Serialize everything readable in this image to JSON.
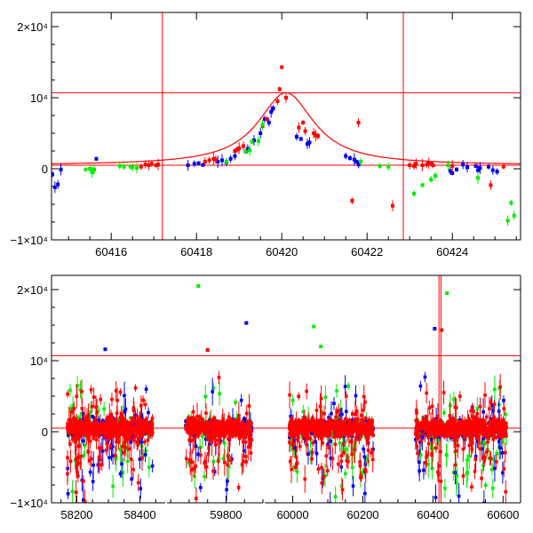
{
  "colors": {
    "red": "#ff0000",
    "green": "#00ee00",
    "blue": "#0000ee",
    "frame": "#000000",
    "background": "#ffffff"
  },
  "chart_data": [
    {
      "type": "scatter",
      "panel": "top",
      "title": "",
      "xlabel": "",
      "ylabel": "",
      "xlim": [
        60414.6,
        60425.6
      ],
      "ylim": [
        -10000,
        22000
      ],
      "x_ticks": [
        60416,
        60418,
        60420,
        60422,
        60424
      ],
      "x_tick_labels": [
        "60416",
        "60418",
        "60420",
        "60422",
        "60424"
      ],
      "y_ticks": [
        -10000,
        0,
        10000,
        20000
      ],
      "y_tick_labels": [
        "−1×10⁴",
        "0",
        "10⁴",
        "2×10⁴"
      ],
      "vertical_lines": [
        60417.2,
        60422.85
      ],
      "horizontal_lines": [
        500,
        10700
      ],
      "model_curve": {
        "type": "lorentzian-like peak",
        "baseline": 500,
        "peak_x": 60420.1,
        "peak_y": 10700,
        "half_width": 0.8
      },
      "series": [
        {
          "color": "blue",
          "points": [
            [
              60414.62,
              -800
            ],
            [
              60414.68,
              -2600
            ],
            [
              60414.75,
              -2200
            ],
            [
              60414.82,
              -100
            ],
            [
              60415.65,
              1400
            ],
            [
              60417.8,
              500
            ],
            [
              60417.95,
              700
            ],
            [
              60418.05,
              800
            ],
            [
              60418.15,
              550
            ],
            [
              60418.5,
              1000
            ],
            [
              60418.6,
              1200
            ],
            [
              60418.7,
              900
            ],
            [
              60418.8,
              1400
            ],
            [
              60418.9,
              1800
            ],
            [
              60419.2,
              2800
            ],
            [
              60419.35,
              4000
            ],
            [
              60419.5,
              5000
            ],
            [
              60419.6,
              7000
            ],
            [
              60419.7,
              6500
            ],
            [
              60419.75,
              8000
            ],
            [
              60419.8,
              8500
            ],
            [
              60420.35,
              4500
            ],
            [
              60420.45,
              4200
            ],
            [
              60420.6,
              3500
            ],
            [
              60420.65,
              3700
            ],
            [
              60421.5,
              1800
            ],
            [
              60421.6,
              1500
            ],
            [
              60421.7,
              1300
            ],
            [
              60421.75,
              1000
            ],
            [
              60421.8,
              600
            ],
            [
              60423.95,
              -300
            ],
            [
              60424.0,
              -600
            ],
            [
              60424.1,
              -100
            ],
            [
              60424.25,
              600
            ],
            [
              60424.35,
              200
            ],
            [
              60424.55,
              400
            ],
            [
              60424.6,
              -200
            ],
            [
              60424.65,
              100
            ],
            [
              60424.85,
              300
            ],
            [
              60424.95,
              -200
            ],
            [
              60425.05,
              -400
            ]
          ]
        },
        {
          "color": "red",
          "points": [
            [
              60416.7,
              300
            ],
            [
              60416.8,
              600
            ],
            [
              60416.88,
              500
            ],
            [
              60416.95,
              700
            ],
            [
              60417.05,
              500
            ],
            [
              60417.1,
              600
            ],
            [
              60418.2,
              1000
            ],
            [
              60418.3,
              1200
            ],
            [
              60418.4,
              1400
            ],
            [
              60418.45,
              1300
            ],
            [
              60418.9,
              2500
            ],
            [
              60418.95,
              2700
            ],
            [
              60419.0,
              2900
            ],
            [
              60419.1,
              3200
            ],
            [
              60419.55,
              6000
            ],
            [
              60419.65,
              7000
            ],
            [
              60419.9,
              9500
            ],
            [
              60419.95,
              11200
            ],
            [
              60420.0,
              14300
            ],
            [
              60420.1,
              10000
            ],
            [
              60420.4,
              5800
            ],
            [
              60420.5,
              6500
            ],
            [
              60420.55,
              5300
            ],
            [
              60420.75,
              5000
            ],
            [
              60420.8,
              4700
            ],
            [
              60420.85,
              4600
            ],
            [
              60421.65,
              -4500
            ],
            [
              60421.8,
              6500
            ],
            [
              60422.6,
              -5200
            ],
            [
              60423.0,
              500
            ],
            [
              60423.1,
              400
            ],
            [
              60423.15,
              700
            ],
            [
              60423.3,
              500
            ],
            [
              60423.4,
              600
            ],
            [
              60423.45,
              800
            ],
            [
              60423.5,
              700
            ],
            [
              60423.55,
              500
            ],
            [
              60424.0,
              400
            ],
            [
              60424.9,
              -2300
            ],
            [
              60425.2,
              300
            ]
          ]
        },
        {
          "color": "green",
          "points": [
            [
              60415.4,
              -100
            ],
            [
              60415.5,
              0
            ],
            [
              60415.55,
              -500
            ],
            [
              60415.6,
              -100
            ],
            [
              60416.45,
              300
            ],
            [
              60416.5,
              200
            ],
            [
              60416.6,
              100
            ],
            [
              60416.2,
              400
            ],
            [
              60416.3,
              300
            ],
            [
              60418.7,
              1000
            ],
            [
              60419.15,
              2400
            ],
            [
              60419.25,
              2600
            ],
            [
              60419.3,
              3800
            ],
            [
              60419.45,
              3900
            ],
            [
              60419.55,
              6200
            ],
            [
              60421.85,
              1000
            ],
            [
              60422.3,
              400
            ],
            [
              60422.5,
              300
            ],
            [
              60423.1,
              -3500
            ],
            [
              60423.3,
              -2300
            ],
            [
              60423.5,
              -1500
            ],
            [
              60423.6,
              -1000
            ],
            [
              60423.9,
              500
            ],
            [
              60424.6,
              -1300
            ],
            [
              60425.3,
              -7300
            ],
            [
              60425.38,
              -4800
            ],
            [
              60425.45,
              -6600
            ]
          ]
        }
      ]
    },
    {
      "type": "scatter",
      "panel": "bottom",
      "title": "",
      "xlabel": "",
      "ylabel": "",
      "x_scale": "broken",
      "segments": [
        {
          "xlim": [
            58120,
            58480
          ],
          "x_ticks": [
            58200,
            58400
          ],
          "x_tick_labels": [
            "58200",
            "58400"
          ]
        },
        {
          "xlim": [
            59640,
            59900
          ],
          "x_ticks": [
            59800
          ],
          "x_tick_labels": [
            "59800"
          ]
        },
        {
          "xlim": [
            59920,
            60650
          ],
          "x_ticks": [
            60000,
            60200,
            60400,
            60600
          ],
          "x_tick_labels": [
            "60000",
            "60200",
            "60400",
            "60600"
          ]
        }
      ],
      "ylim": [
        -10000,
        22000
      ],
      "y_ticks": [
        -10000,
        0,
        10000,
        20000
      ],
      "y_tick_labels": [
        "−1×10⁴",
        "0",
        "10⁴",
        "2×10⁴"
      ],
      "horizontal_lines": [
        500,
        10700
      ],
      "vertical_lines": [
        60417.2,
        60422.85
      ],
      "data_coverage": [
        [
          58170,
          58440
        ],
        [
          59690,
          59870
        ],
        [
          59990,
          60230
        ],
        [
          60350,
          60610
        ]
      ],
      "outliers": [
        {
          "color": "blue",
          "x": 59855,
          "y": 15300
        },
        {
          "color": "green",
          "x": 59725,
          "y": 20500
        },
        {
          "color": "green",
          "x": 60060,
          "y": 14800
        },
        {
          "color": "green",
          "x": 60080,
          "y": 12000
        },
        {
          "color": "blue",
          "x": 58290,
          "y": 11600
        },
        {
          "color": "red",
          "x": 59750,
          "y": 11500
        },
        {
          "color": "green",
          "x": 60440,
          "y": 19500
        },
        {
          "color": "blue",
          "x": 60405,
          "y": 14500
        },
        {
          "color": "red",
          "x": 60425,
          "y": 14300
        }
      ]
    }
  ]
}
